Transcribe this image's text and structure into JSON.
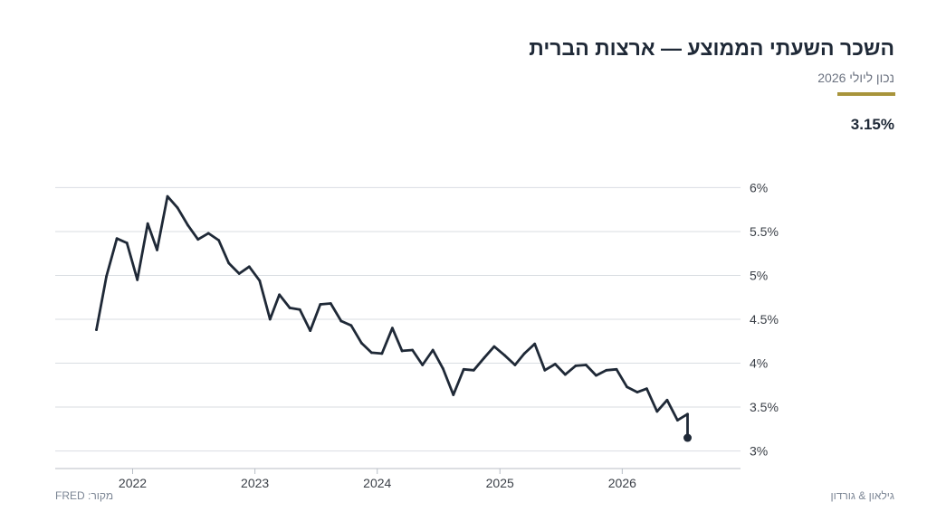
{
  "header": {
    "title": "השכר השעתי הממוצע — ארצות הברית",
    "subtitle": "נכון ליולי 2026",
    "latest_value": "3.15%"
  },
  "footer": {
    "source": "מקור: FRED",
    "brand": "גילאון & גורדון"
  },
  "colors": {
    "line": "#1f2937",
    "grid": "#d9dde2",
    "accent": "#a8943b",
    "tick_text": "#3a3f47"
  },
  "chart_data": {
    "type": "line",
    "title": "",
    "xlabel": "",
    "ylabel": "",
    "ylim": [
      2.8,
      6.2
    ],
    "xlim": [
      "2021-05-15",
      "2026-12-20"
    ],
    "grid": true,
    "y_axis_side": "right",
    "y_ticks": [
      3,
      3.5,
      4,
      4.5,
      5,
      5.5,
      6
    ],
    "y_tick_labels": [
      "3%",
      "3.5%",
      "4%",
      "4.5%",
      "5%",
      "5.5%",
      "6%"
    ],
    "x_ticks": [
      "2022-01-01",
      "2023-01-01",
      "2024-01-01",
      "2025-01-01",
      "2026-01-01"
    ],
    "x_tick_labels": [
      "2022",
      "2023",
      "2024",
      "2025",
      "2026"
    ],
    "last_point_marker": true,
    "series": [
      {
        "name": "",
        "x": [
          "2021-09",
          "2021-10",
          "2021-11",
          "2021-12",
          "2022-01",
          "2022-02",
          "2022-03",
          "2022-04",
          "2022-05",
          "2022-06",
          "2022-07",
          "2022-08",
          "2022-09",
          "2022-10",
          "2022-11",
          "2022-12",
          "2023-01",
          "2023-02",
          "2023-03",
          "2023-04",
          "2023-05",
          "2023-06",
          "2023-07",
          "2023-08",
          "2023-09",
          "2023-10",
          "2023-11",
          "2023-12",
          "2024-01",
          "2024-02",
          "2024-03",
          "2024-04",
          "2024-05",
          "2024-06",
          "2024-07",
          "2024-08",
          "2024-09",
          "2024-10",
          "2024-11",
          "2024-12",
          "2025-01",
          "2025-02",
          "2025-03",
          "2025-04",
          "2025-05",
          "2025-06",
          "2025-07",
          "2025-08",
          "2025-09",
          "2025-10",
          "2025-11",
          "2025-12",
          "2026-01",
          "2026-02",
          "2026-03",
          "2026-04",
          "2026-05",
          "2026-06",
          "2026-07",
          "2026-07"
        ],
        "values": [
          4.38,
          4.99,
          5.42,
          5.37,
          4.95,
          5.59,
          5.29,
          5.9,
          5.77,
          5.57,
          5.41,
          5.48,
          5.4,
          5.14,
          5.02,
          5.1,
          4.94,
          4.5,
          4.78,
          4.63,
          4.61,
          4.37,
          4.67,
          4.68,
          4.48,
          4.43,
          4.23,
          4.12,
          4.11,
          4.4,
          4.14,
          4.15,
          3.98,
          4.15,
          3.94,
          3.64,
          3.93,
          3.92,
          4.06,
          4.19,
          4.09,
          3.98,
          4.11,
          4.22,
          3.92,
          3.99,
          3.87,
          3.97,
          3.98,
          3.86,
          3.92,
          3.93,
          3.73,
          3.67,
          3.71,
          3.45,
          3.58,
          3.35,
          3.42,
          3.15
        ]
      }
    ]
  }
}
